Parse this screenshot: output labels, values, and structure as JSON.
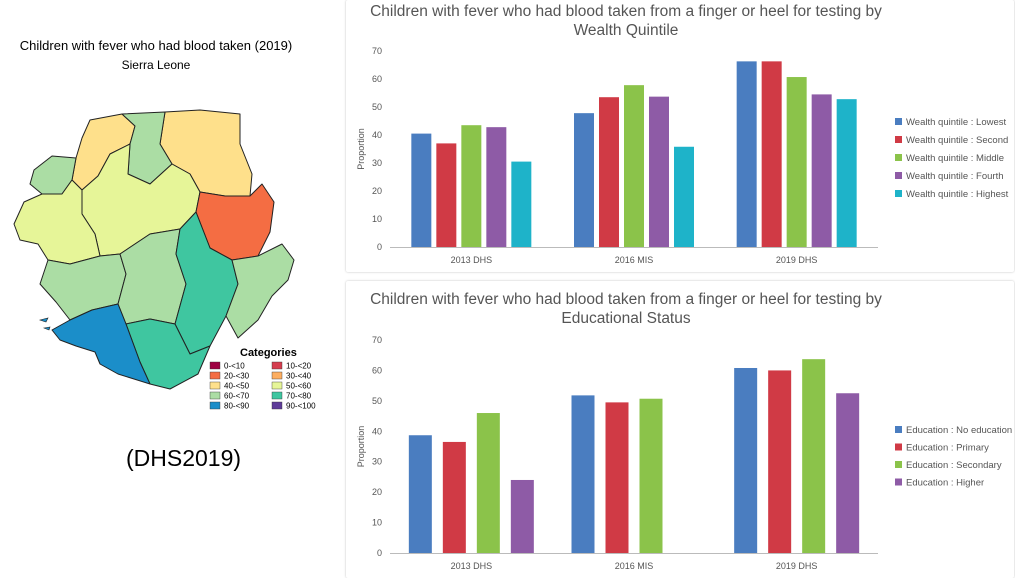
{
  "map": {
    "title": "Children with fever who had blood taken (2019)",
    "subtitle": "Sierra Leone",
    "legend_title": "Categories",
    "legend": [
      {
        "label": "0-<10",
        "color": "#9e0142"
      },
      {
        "label": "10-<20",
        "color": "#d53e4f"
      },
      {
        "label": "20-<30",
        "color": "#f46d43"
      },
      {
        "label": "30-<40",
        "color": "#fdae61"
      },
      {
        "label": "40-<50",
        "color": "#fee08b"
      },
      {
        "label": "50-<60",
        "color": "#e6f598"
      },
      {
        "label": "60-<70",
        "color": "#abdda4"
      },
      {
        "label": "70-<80",
        "color": "#3fc6a0"
      },
      {
        "label": "80-<90",
        "color": "#1b8ec9"
      },
      {
        "label": "90-<100",
        "color": "#5e3c99"
      }
    ]
  },
  "footnote": "(DHS2019)",
  "chart_data": [
    {
      "type": "bar",
      "title": "Children with fever who had blood taken from a finger or heel for testing by Wealth Quintile",
      "categories": [
        "2013 DHS",
        "2016 MIS",
        "2019 DHS"
      ],
      "ylabel": "Proportion",
      "ylim": [
        0,
        70
      ],
      "yticks": [
        0,
        10,
        20,
        30,
        40,
        50,
        60,
        70
      ],
      "legend_position": "right",
      "series": [
        {
          "name": "Wealth quintile : Lowest",
          "color": "#4a7dc0",
          "values": [
            40.5,
            47.8,
            66.3
          ]
        },
        {
          "name": "Wealth quintile : Second",
          "color": "#d03a45",
          "values": [
            37.0,
            53.5,
            66.3
          ]
        },
        {
          "name": "Wealth quintile : Middle",
          "color": "#8bc34a",
          "values": [
            43.5,
            57.8,
            60.7
          ]
        },
        {
          "name": "Wealth quintile : Fourth",
          "color": "#8e5ba6",
          "values": [
            42.8,
            53.7,
            54.5
          ]
        },
        {
          "name": "Wealth quintile : Highest",
          "color": "#1eb3c9",
          "values": [
            30.5,
            35.8,
            52.8
          ]
        }
      ]
    },
    {
      "type": "bar",
      "title": "Children with fever who had blood taken from a finger or heel for testing by Educational Status",
      "categories": [
        "2013 DHS",
        "2016 MIS",
        "2019 DHS"
      ],
      "ylabel": "Proportion",
      "ylim": [
        0,
        70
      ],
      "yticks": [
        0,
        10,
        20,
        30,
        40,
        50,
        60,
        70
      ],
      "legend_position": "right",
      "series": [
        {
          "name": "Education : No education",
          "color": "#4a7dc0",
          "values": [
            38.7,
            51.8,
            60.8
          ]
        },
        {
          "name": "Education : Primary",
          "color": "#d03a45",
          "values": [
            36.5,
            49.5,
            60.0
          ]
        },
        {
          "name": "Education : Secondary",
          "color": "#8bc34a",
          "values": [
            46.0,
            50.7,
            63.7
          ]
        },
        {
          "name": "Education : Higher",
          "color": "#8e5ba6",
          "values": [
            24.0,
            null,
            52.5
          ]
        }
      ]
    }
  ]
}
